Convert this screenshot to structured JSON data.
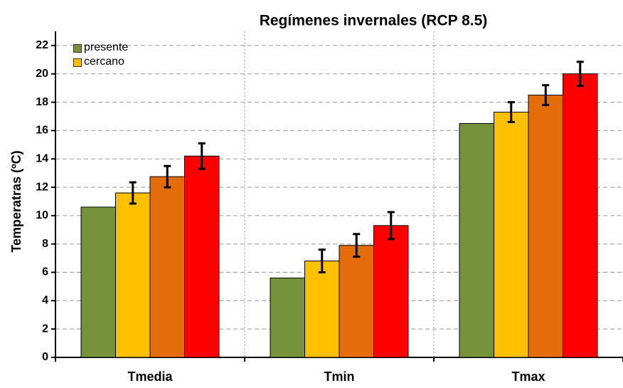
{
  "chart_data": {
    "type": "bar",
    "title": "Regímenes invernales (RCP 8.5)",
    "y_label": "Temperatras (ºC)",
    "categories": [
      "Tmedia",
      "Tmin",
      "Tmax"
    ],
    "series": [
      {
        "name": "presente",
        "color": "#76933c",
        "values": [
          10.6,
          5.6,
          16.5
        ]
      },
      {
        "name": "cercano",
        "color": "#ffc000",
        "values": [
          11.6,
          6.8,
          17.3
        ],
        "errors": [
          0.75,
          0.8,
          0.7
        ]
      },
      {
        "color": "#e46c0a",
        "values": [
          12.75,
          7.9,
          18.5
        ],
        "errors": [
          0.75,
          0.8,
          0.7
        ]
      },
      {
        "color": "#ff0000",
        "values": [
          14.2,
          9.3,
          20.0
        ],
        "errors": [
          0.9,
          0.95,
          0.85
        ]
      }
    ],
    "ylim": [
      0,
      23
    ],
    "yticks": [
      0,
      2,
      4,
      6,
      8,
      10,
      12,
      14,
      16,
      18,
      20,
      22
    ],
    "grid": true
  }
}
